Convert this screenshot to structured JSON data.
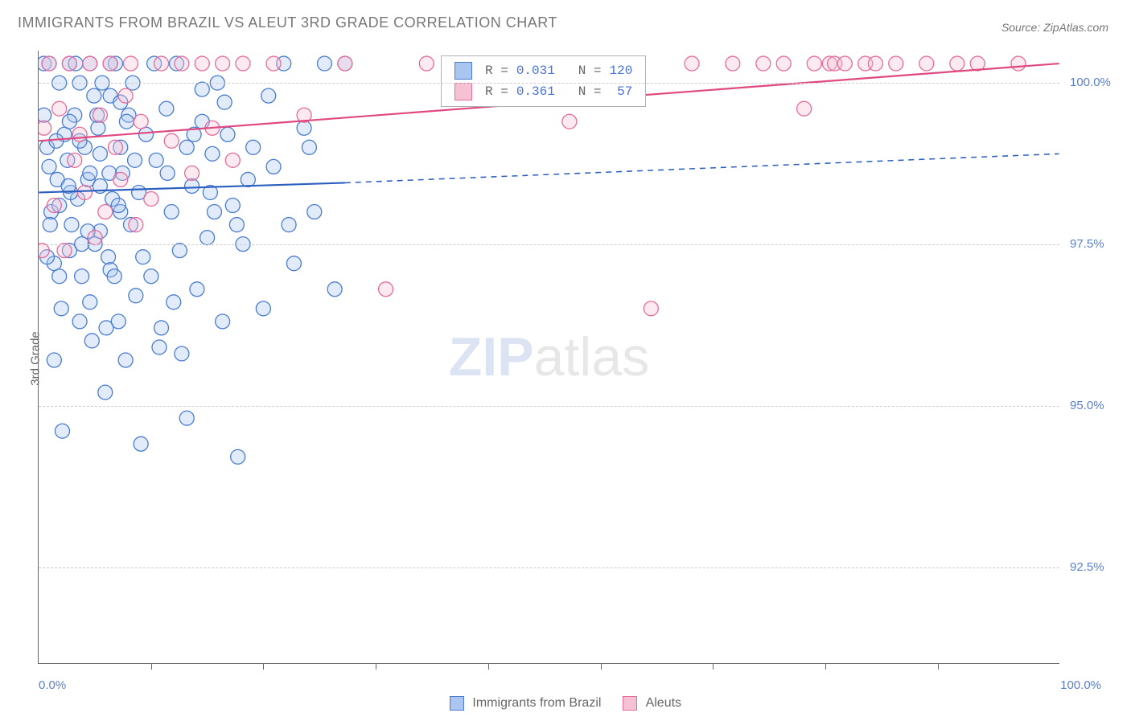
{
  "title": "IMMIGRANTS FROM BRAZIL VS ALEUT 3RD GRADE CORRELATION CHART",
  "source": "Source: ZipAtlas.com",
  "ylabel": "3rd Grade",
  "watermark_a": "ZIP",
  "watermark_b": "atlas",
  "chart": {
    "type": "scatter",
    "xlim": [
      0,
      100
    ],
    "ylim": [
      91,
      100.5
    ],
    "x_ticks": [
      0,
      100
    ],
    "x_tick_labels": [
      "0.0%",
      "100.0%"
    ],
    "x_minor_tick_positions": [
      11,
      22,
      33,
      44,
      55,
      66,
      77,
      88
    ],
    "y_ticks": [
      92.5,
      95.0,
      97.5,
      100.0
    ],
    "y_tick_labels": [
      "92.5%",
      "95.0%",
      "97.5%",
      "100.0%"
    ],
    "grid_color": "#cccccc",
    "background_color": "#ffffff",
    "marker_radius": 9,
    "marker_fill_opacity": 0.35,
    "marker_stroke_width": 1.3,
    "line_width": 2.2,
    "series": [
      {
        "name": "Immigrants from Brazil",
        "color_fill": "#a9c5f0",
        "color_stroke": "#4a7cd1",
        "line_color": "#2a5fc0",
        "r_value": "0.031",
        "n_value": "120",
        "trend_solid": {
          "x1": 0,
          "y1": 98.3,
          "x2": 30,
          "y2": 98.45
        },
        "trend_dashed": {
          "x1": 30,
          "y1": 98.45,
          "x2": 100,
          "y2": 98.9
        },
        "points": [
          [
            0.5,
            100.3
          ],
          [
            0.8,
            99.0
          ],
          [
            1.0,
            100.3
          ],
          [
            1.2,
            98.0
          ],
          [
            1.5,
            97.2
          ],
          [
            1.8,
            98.5
          ],
          [
            2.0,
            100.0
          ],
          [
            2.2,
            96.5
          ],
          [
            2.5,
            99.2
          ],
          [
            2.8,
            98.8
          ],
          [
            3.0,
            100.3
          ],
          [
            3.2,
            97.8
          ],
          [
            3.5,
            99.5
          ],
          [
            3.8,
            98.2
          ],
          [
            4.0,
            100.0
          ],
          [
            4.2,
            97.0
          ],
          [
            4.5,
            99.0
          ],
          [
            4.8,
            98.5
          ],
          [
            5.0,
            100.3
          ],
          [
            5.2,
            96.0
          ],
          [
            5.5,
            97.5
          ],
          [
            5.8,
            99.3
          ],
          [
            6.0,
            98.4
          ],
          [
            6.2,
            100.0
          ],
          [
            6.5,
            95.2
          ],
          [
            6.8,
            97.3
          ],
          [
            7.0,
            99.8
          ],
          [
            7.2,
            98.2
          ],
          [
            7.5,
            100.3
          ],
          [
            7.8,
            96.3
          ],
          [
            8.0,
            99.0
          ],
          [
            8.2,
            98.6
          ],
          [
            8.5,
            95.7
          ],
          [
            8.8,
            99.5
          ],
          [
            9.0,
            97.8
          ],
          [
            9.2,
            100.0
          ],
          [
            9.5,
            96.7
          ],
          [
            9.8,
            98.3
          ],
          [
            10.0,
            94.4
          ],
          [
            10.5,
            99.2
          ],
          [
            11.0,
            97.0
          ],
          [
            11.5,
            98.8
          ],
          [
            12.0,
            96.2
          ],
          [
            12.5,
            99.6
          ],
          [
            13.0,
            98.0
          ],
          [
            13.5,
            100.3
          ],
          [
            14.0,
            95.8
          ],
          [
            14.5,
            99.0
          ],
          [
            15.0,
            98.4
          ],
          [
            15.5,
            96.8
          ],
          [
            16.0,
            99.4
          ],
          [
            16.5,
            97.6
          ],
          [
            17.0,
            98.9
          ],
          [
            17.5,
            100.0
          ],
          [
            18.0,
            96.3
          ],
          [
            18.5,
            99.2
          ],
          [
            19.0,
            98.1
          ],
          [
            19.5,
            94.2
          ],
          [
            20.0,
            97.5
          ],
          [
            21.0,
            99.0
          ],
          [
            22.0,
            96.5
          ],
          [
            23.0,
            98.7
          ],
          [
            24.0,
            100.3
          ],
          [
            25.0,
            97.2
          ],
          [
            26.0,
            99.3
          ],
          [
            27.0,
            98.0
          ],
          [
            28.0,
            100.3
          ],
          [
            29.0,
            96.8
          ],
          [
            30.0,
            100.3
          ],
          [
            2.0,
            98.1
          ],
          [
            3.0,
            97.4
          ],
          [
            4.0,
            99.1
          ],
          [
            5.0,
            96.6
          ],
          [
            6.0,
            98.9
          ],
          [
            7.0,
            97.1
          ],
          [
            8.0,
            99.7
          ],
          [
            1.0,
            98.7
          ],
          [
            2.0,
            97.0
          ],
          [
            3.0,
            99.4
          ],
          [
            4.0,
            96.3
          ],
          [
            5.0,
            98.6
          ],
          [
            6.0,
            97.7
          ],
          [
            7.0,
            100.3
          ],
          [
            8.0,
            98.0
          ],
          [
            0.8,
            97.3
          ],
          [
            1.5,
            95.7
          ],
          [
            2.3,
            94.6
          ],
          [
            3.1,
            98.3
          ],
          [
            4.2,
            97.5
          ],
          [
            5.4,
            99.8
          ],
          [
            6.6,
            96.2
          ],
          [
            7.8,
            98.1
          ],
          [
            0.5,
            99.5
          ],
          [
            1.1,
            97.8
          ],
          [
            1.7,
            99.1
          ],
          [
            2.9,
            98.4
          ],
          [
            3.6,
            100.3
          ],
          [
            4.8,
            97.7
          ],
          [
            5.7,
            99.5
          ],
          [
            6.9,
            98.6
          ],
          [
            7.4,
            97.0
          ],
          [
            8.6,
            99.4
          ],
          [
            9.4,
            98.8
          ],
          [
            10.2,
            97.3
          ],
          [
            11.3,
            100.3
          ],
          [
            12.6,
            98.6
          ],
          [
            13.8,
            97.4
          ],
          [
            15.2,
            99.2
          ],
          [
            16.8,
            98.3
          ],
          [
            18.2,
            99.7
          ],
          [
            19.4,
            97.8
          ],
          [
            14.5,
            94.8
          ],
          [
            16,
            99.9
          ],
          [
            17.2,
            98.0
          ],
          [
            11.8,
            95.9
          ],
          [
            13.2,
            96.6
          ],
          [
            20.5,
            98.5
          ],
          [
            22.5,
            99.8
          ],
          [
            24.5,
            97.8
          ],
          [
            26.5,
            99.0
          ]
        ]
      },
      {
        "name": "Aleuts",
        "color_fill": "#f5c2d4",
        "color_stroke": "#e76b9a",
        "line_color": "#e04880",
        "r_value": "0.361",
        "n_value": "57",
        "trend_solid": {
          "x1": 0,
          "y1": 99.1,
          "x2": 100,
          "y2": 100.3
        },
        "trend_dashed": null,
        "points": [
          [
            0.5,
            99.3
          ],
          [
            1.0,
            100.3
          ],
          [
            1.5,
            98.1
          ],
          [
            2.0,
            99.6
          ],
          [
            2.5,
            97.4
          ],
          [
            3.0,
            100.3
          ],
          [
            3.5,
            98.8
          ],
          [
            4.0,
            99.2
          ],
          [
            4.5,
            98.3
          ],
          [
            5.0,
            100.3
          ],
          [
            5.5,
            97.6
          ],
          [
            6.0,
            99.5
          ],
          [
            6.5,
            98.0
          ],
          [
            7.0,
            100.3
          ],
          [
            7.5,
            99.0
          ],
          [
            8.0,
            98.5
          ],
          [
            8.5,
            99.8
          ],
          [
            9.0,
            100.3
          ],
          [
            9.5,
            97.8
          ],
          [
            10.0,
            99.4
          ],
          [
            11.0,
            98.2
          ],
          [
            12.0,
            100.3
          ],
          [
            13.0,
            99.1
          ],
          [
            14.0,
            100.3
          ],
          [
            15.0,
            98.6
          ],
          [
            16.0,
            100.3
          ],
          [
            17.0,
            99.3
          ],
          [
            18.0,
            100.3
          ],
          [
            19.0,
            98.8
          ],
          [
            20.0,
            100.3
          ],
          [
            23.0,
            100.3
          ],
          [
            26.0,
            99.5
          ],
          [
            30.0,
            100.3
          ],
          [
            34.0,
            96.8
          ],
          [
            38.0,
            100.3
          ],
          [
            42.0,
            100.3
          ],
          [
            48.0,
            100.3
          ],
          [
            52.0,
            99.4
          ],
          [
            58.0,
            100.3
          ],
          [
            60.0,
            96.5
          ],
          [
            64.0,
            100.3
          ],
          [
            68.0,
            100.3
          ],
          [
            71.0,
            100.3
          ],
          [
            73.0,
            100.3
          ],
          [
            75.0,
            99.6
          ],
          [
            76.0,
            100.3
          ],
          [
            77.5,
            100.3
          ],
          [
            78.0,
            100.3
          ],
          [
            79.0,
            100.3
          ],
          [
            81.0,
            100.3
          ],
          [
            82.0,
            100.3
          ],
          [
            84.0,
            100.3
          ],
          [
            87.0,
            100.3
          ],
          [
            90.0,
            100.3
          ],
          [
            92.0,
            100.3
          ],
          [
            96.0,
            100.3
          ],
          [
            0.3,
            97.4
          ]
        ]
      }
    ],
    "legend": {
      "r_label": "R = ",
      "n_label": "N = "
    }
  },
  "bottom_legend": {
    "series1_label": "Immigrants from Brazil",
    "series2_label": "Aleuts"
  }
}
